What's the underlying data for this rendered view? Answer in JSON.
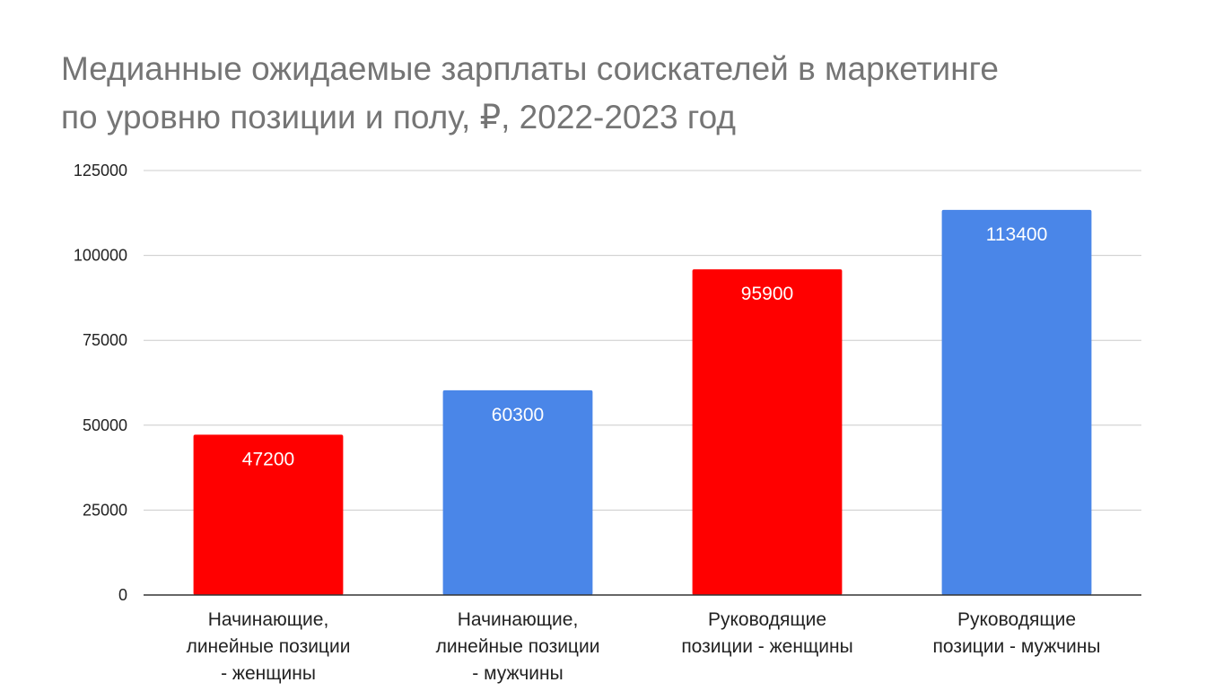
{
  "chart_data": {
    "type": "bar",
    "title_lines": [
      "Медианные ожидаемые зарплаты соискателей в маркетинге",
      "по уровню позиции и полу, ₽, 2022-2023 год"
    ],
    "categories": [
      [
        "Начинающие,",
        "линейные позиции",
        "- женщины"
      ],
      [
        "Начинающие,",
        "линейные позиции",
        "- мужчины"
      ],
      [
        "Руководящие",
        "позиции - женщины"
      ],
      [
        "Руководящие",
        "позиции - мужчины"
      ]
    ],
    "values": [
      47200,
      60300,
      95900,
      113400
    ],
    "bar_colors": [
      "#ff0000",
      "#4a86e8",
      "#ff0000",
      "#4a86e8"
    ],
    "data_labels": [
      "47200",
      "60300",
      "95900",
      "113400"
    ],
    "yticks": [
      0,
      25000,
      50000,
      75000,
      100000,
      125000
    ],
    "ytick_labels": [
      "0",
      "25000",
      "50000",
      "75000",
      "100000",
      "125000"
    ],
    "ylim": [
      0,
      125000
    ],
    "xlabel": "",
    "ylabel": "",
    "grid": true,
    "legend": "none"
  }
}
